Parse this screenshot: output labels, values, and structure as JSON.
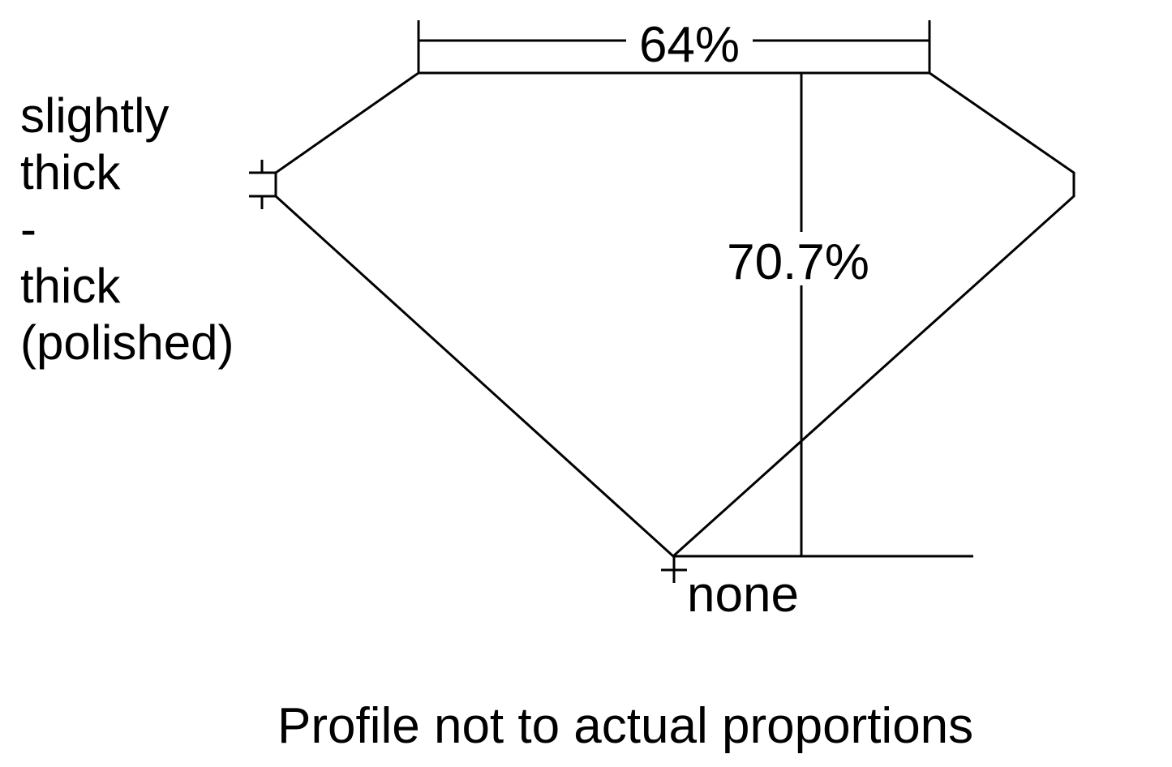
{
  "diagram": {
    "table_percent": "64%",
    "depth_percent": "70.7%",
    "girdle_label_lines": [
      "slightly",
      "thick",
      "-",
      "thick",
      "(polished)"
    ],
    "culet_label": "none",
    "footnote": "Profile not to actual proportions",
    "line_color": "#000000",
    "background_color": "#ffffff"
  }
}
